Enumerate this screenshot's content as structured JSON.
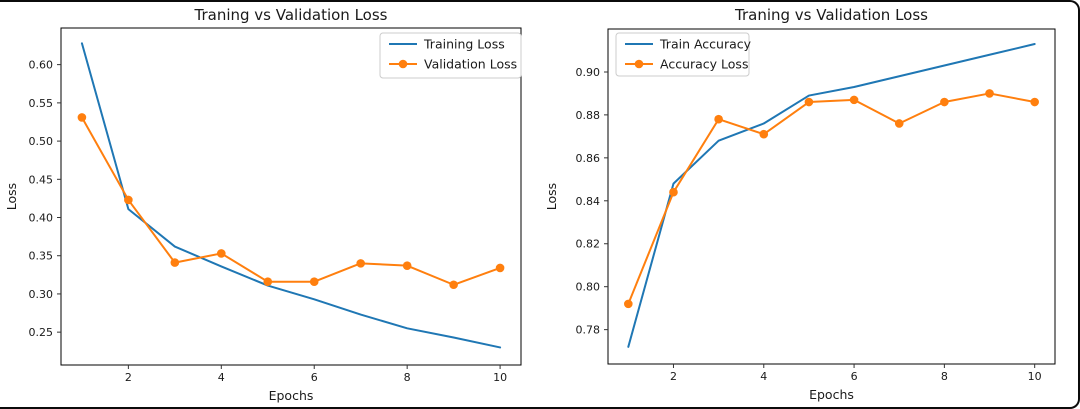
{
  "figure": {
    "background": "#ffffff",
    "border_color": "#0b0b0b"
  },
  "colors": {
    "blue": "#1f77b4",
    "orange": "#ff7f0e",
    "spine": "#000000",
    "tick": "#333333",
    "text": "#1a1a1a",
    "legend_border": "#cccccc"
  },
  "chart_data": [
    {
      "type": "line",
      "title": "Traning vs Validation Loss",
      "xlabel": "Epochs",
      "ylabel": "Loss",
      "x": [
        1,
        2,
        3,
        4,
        5,
        6,
        7,
        8,
        9,
        10
      ],
      "xlim": [
        0.55,
        10.45
      ],
      "ylim": [
        0.207,
        0.648
      ],
      "xticks": [
        2,
        4,
        6,
        8,
        10
      ],
      "xtick_labels": [
        "2",
        "4",
        "6",
        "8",
        "10"
      ],
      "yticks": [
        0.25,
        0.3,
        0.35,
        0.4,
        0.45,
        0.5,
        0.55,
        0.6
      ],
      "ytick_labels": [
        "0.25",
        "0.30",
        "0.35",
        "0.40",
        "0.45",
        "0.50",
        "0.55",
        "0.60"
      ],
      "grid": false,
      "legend_position": "upper-right",
      "series": [
        {
          "name": "Training Loss",
          "color": "#1f77b4",
          "marker": "none",
          "values": [
            0.628,
            0.411,
            0.362,
            0.336,
            0.311,
            0.293,
            0.273,
            0.255,
            0.243,
            0.23
          ]
        },
        {
          "name": "Validation Loss",
          "color": "#ff7f0e",
          "marker": "circle",
          "values": [
            0.531,
            0.423,
            0.341,
            0.353,
            0.316,
            0.316,
            0.34,
            0.337,
            0.312,
            0.334
          ]
        }
      ]
    },
    {
      "type": "line",
      "title": "Traning vs Validation Loss",
      "xlabel": "Epochs",
      "ylabel": "Loss",
      "x": [
        1,
        2,
        3,
        4,
        5,
        6,
        7,
        8,
        9,
        10
      ],
      "xlim": [
        0.55,
        10.45
      ],
      "ylim": [
        0.764,
        0.92
      ],
      "xticks": [
        2,
        4,
        6,
        8,
        10
      ],
      "xtick_labels": [
        "2",
        "4",
        "6",
        "8",
        "10"
      ],
      "yticks": [
        0.78,
        0.8,
        0.82,
        0.84,
        0.86,
        0.88,
        0.9
      ],
      "ytick_labels": [
        "0.78",
        "0.80",
        "0.82",
        "0.84",
        "0.86",
        "0.88",
        "0.90"
      ],
      "grid": false,
      "legend_position": "upper-left",
      "series": [
        {
          "name": "Train Accuracy",
          "color": "#1f77b4",
          "marker": "none",
          "values": [
            0.772,
            0.848,
            0.868,
            0.876,
            0.889,
            0.893,
            0.898,
            0.903,
            0.908,
            0.913
          ]
        },
        {
          "name": "Accuracy Loss",
          "color": "#ff7f0e",
          "marker": "circle",
          "values": [
            0.792,
            0.844,
            0.878,
            0.871,
            0.886,
            0.887,
            0.876,
            0.886,
            0.89,
            0.886
          ]
        }
      ]
    }
  ]
}
